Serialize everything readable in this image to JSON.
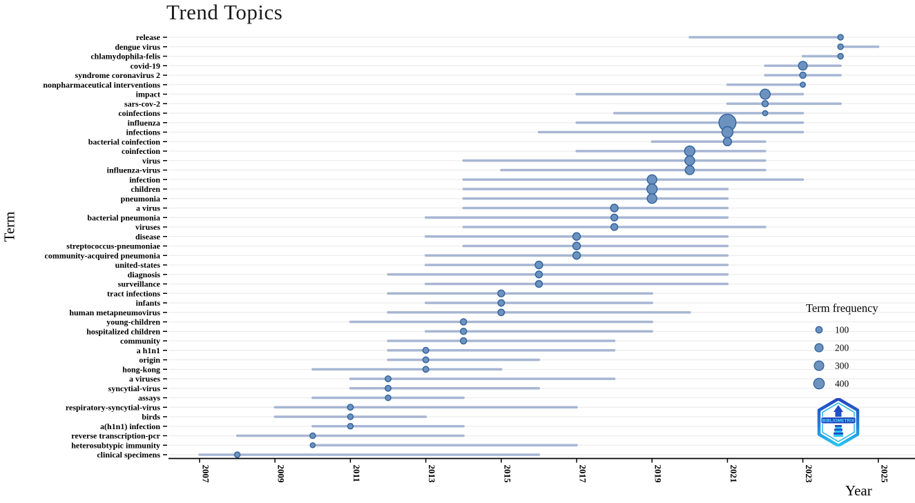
{
  "title": "Trend Topics",
  "x_axis": {
    "label": "Year"
  },
  "y_axis": {
    "label": "Term"
  },
  "legend": {
    "title": "Term frequency",
    "sizes": [
      100,
      200,
      300,
      400
    ]
  },
  "logo": {
    "text": "BIBLIOMETRIX"
  },
  "colors": {
    "range_line": "#a7b6d3",
    "dot_fill": "#6c92c0",
    "dot_stroke": "#30619a",
    "gridline": "#ececec",
    "axis": "#000000",
    "text": "#000000"
  },
  "chart_data": {
    "type": "scatter",
    "title": "Trend Topics",
    "xlabel": "Year",
    "ylabel": "Term",
    "x_ticks": [
      "2007",
      "2009",
      "2011",
      "2013",
      "2015",
      "2017",
      "2019",
      "2021",
      "2023",
      "2025"
    ],
    "xlim": [
      2006.2,
      2026.0
    ],
    "grid": "horizontal",
    "legend_position": "right",
    "legend_title": "Term frequency",
    "legend_sizes": [
      100,
      200,
      300,
      400
    ],
    "series": [
      {
        "term": "release",
        "q1": 2020,
        "median": 2024,
        "q3": 2024,
        "frequency": 60
      },
      {
        "term": "dengue virus",
        "q1": 2024,
        "median": 2024,
        "q3": 2025,
        "frequency": 60
      },
      {
        "term": "chlamydophila-felis",
        "q1": 2023,
        "median": 2024,
        "q3": 2024,
        "frequency": 60
      },
      {
        "term": "covid-19",
        "q1": 2022,
        "median": 2023,
        "q3": 2024,
        "frequency": 240
      },
      {
        "term": "syndrome coronavirus 2",
        "q1": 2022,
        "median": 2023,
        "q3": 2024,
        "frequency": 90
      },
      {
        "term": "nonpharmaceutical interventions",
        "q1": 2021,
        "median": 2023,
        "q3": 2023,
        "frequency": 45
      },
      {
        "term": "impact",
        "q1": 2017,
        "median": 2022,
        "q3": 2023,
        "frequency": 350
      },
      {
        "term": "sars-cov-2",
        "q1": 2021,
        "median": 2022,
        "q3": 2024,
        "frequency": 90
      },
      {
        "term": "coinfections",
        "q1": 2018,
        "median": 2022,
        "q3": 2023,
        "frequency": 45
      },
      {
        "term": "influenza",
        "q1": 2017,
        "median": 2021,
        "q3": 2023,
        "frequency": 1250
      },
      {
        "term": "infections",
        "q1": 2016,
        "median": 2021,
        "q3": 2023,
        "frequency": 440
      },
      {
        "term": "bacterial coinfection",
        "q1": 2019,
        "median": 2021,
        "q3": 2022,
        "frequency": 200
      },
      {
        "term": "coinfection",
        "q1": 2017,
        "median": 2020,
        "q3": 2022,
        "frequency": 370
      },
      {
        "term": "virus",
        "q1": 2014,
        "median": 2020,
        "q3": 2022,
        "frequency": 310
      },
      {
        "term": "influenza-virus",
        "q1": 2015,
        "median": 2020,
        "q3": 2022,
        "frequency": 260
      },
      {
        "term": "infection",
        "q1": 2014,
        "median": 2019,
        "q3": 2023,
        "frequency": 310
      },
      {
        "term": "children",
        "q1": 2014,
        "median": 2019,
        "q3": 2021,
        "frequency": 370
      },
      {
        "term": "pneumonia",
        "q1": 2014,
        "median": 2019,
        "q3": 2021,
        "frequency": 310
      },
      {
        "term": "a virus",
        "q1": 2014,
        "median": 2018,
        "q3": 2021,
        "frequency": 160
      },
      {
        "term": "bacterial pneumonia",
        "q1": 2013,
        "median": 2018,
        "q3": 2021,
        "frequency": 120
      },
      {
        "term": "viruses",
        "q1": 2014,
        "median": 2018,
        "q3": 2022,
        "frequency": 120
      },
      {
        "term": "disease",
        "q1": 2013,
        "median": 2017,
        "q3": 2021,
        "frequency": 160
      },
      {
        "term": "streptococcus-pneumoniae",
        "q1": 2014,
        "median": 2017,
        "q3": 2021,
        "frequency": 160
      },
      {
        "term": "community-acquired pneumonia",
        "q1": 2013,
        "median": 2017,
        "q3": 2021,
        "frequency": 160
      },
      {
        "term": "united-states",
        "q1": 2013,
        "median": 2016,
        "q3": 2021,
        "frequency": 160
      },
      {
        "term": "diagnosis",
        "q1": 2012,
        "median": 2016,
        "q3": 2021,
        "frequency": 120
      },
      {
        "term": "surveillance",
        "q1": 2013,
        "median": 2016,
        "q3": 2021,
        "frequency": 120
      },
      {
        "term": "tract infections",
        "q1": 2012,
        "median": 2015,
        "q3": 2019,
        "frequency": 120
      },
      {
        "term": "infants",
        "q1": 2013,
        "median": 2015,
        "q3": 2019,
        "frequency": 100
      },
      {
        "term": "human metapneumovirus",
        "q1": 2012,
        "median": 2015,
        "q3": 2020,
        "frequency": 100
      },
      {
        "term": "young-children",
        "q1": 2011,
        "median": 2014,
        "q3": 2019,
        "frequency": 90
      },
      {
        "term": "hospitalized children",
        "q1": 2013,
        "median": 2014,
        "q3": 2019,
        "frequency": 90
      },
      {
        "term": "community",
        "q1": 2012,
        "median": 2014,
        "q3": 2018,
        "frequency": 90
      },
      {
        "term": "a h1n1",
        "q1": 2012,
        "median": 2013,
        "q3": 2018,
        "frequency": 75
      },
      {
        "term": "origin",
        "q1": 2012,
        "median": 2013,
        "q3": 2016,
        "frequency": 75
      },
      {
        "term": "hong-kong",
        "q1": 2010,
        "median": 2013,
        "q3": 2015,
        "frequency": 75
      },
      {
        "term": "a viruses",
        "q1": 2011,
        "median": 2012,
        "q3": 2018,
        "frequency": 75
      },
      {
        "term": "syncytial-virus",
        "q1": 2011,
        "median": 2012,
        "q3": 2016,
        "frequency": 75
      },
      {
        "term": "assays",
        "q1": 2010,
        "median": 2012,
        "q3": 2014,
        "frequency": 60
      },
      {
        "term": "respiratory-syncytial-virus",
        "q1": 2009,
        "median": 2011,
        "q3": 2017,
        "frequency": 75
      },
      {
        "term": "birds",
        "q1": 2009,
        "median": 2011,
        "q3": 2013,
        "frequency": 60
      },
      {
        "term": "a(h1n1) infection",
        "q1": 2010,
        "median": 2011,
        "q3": 2014,
        "frequency": 60
      },
      {
        "term": "reverse transcription-pcr",
        "q1": 2008,
        "median": 2010,
        "q3": 2014,
        "frequency": 60
      },
      {
        "term": "heterosubtypic immunity",
        "q1": 2010,
        "median": 2010,
        "q3": 2017,
        "frequency": 40
      },
      {
        "term": "clinical specimens",
        "q1": 2007,
        "median": 2008,
        "q3": 2016,
        "frequency": 60
      }
    ]
  }
}
